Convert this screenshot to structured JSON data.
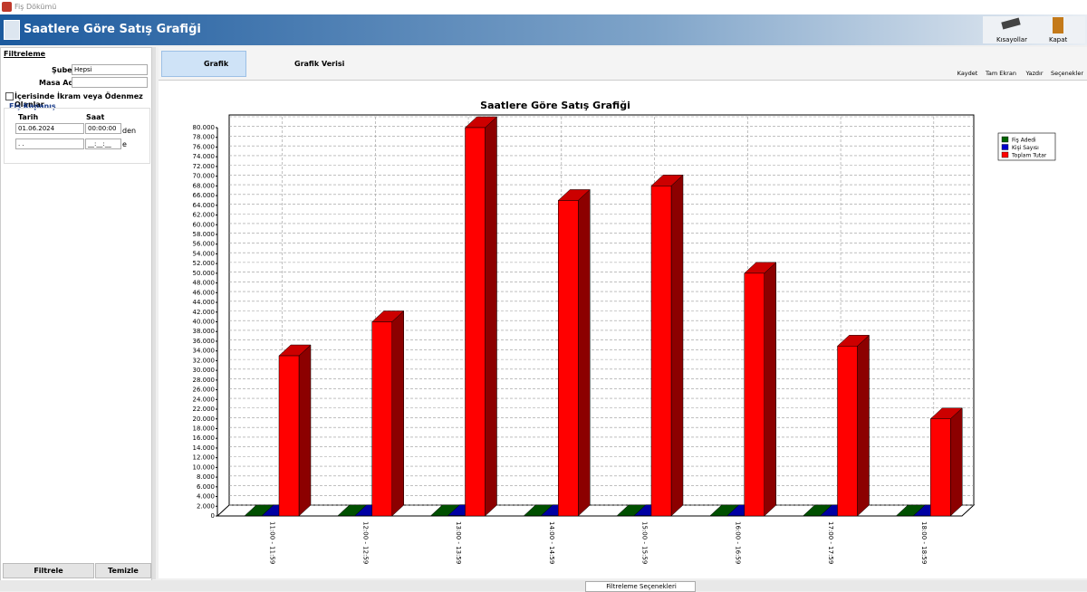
{
  "window": {
    "title": "Fiş Dökümü"
  },
  "header": {
    "title": "Saatlere Göre Satış Grafiği",
    "buttons": [
      "Kısayollar",
      "Kapat"
    ]
  },
  "filters": {
    "title": "Filtreleme",
    "sube_label": "Şube",
    "sube_value": "Hepsi",
    "masa_label": "Masa Adı",
    "checkbox": "İçerisinde İkram veya Ödenmez Olanlar",
    "group": "Fiş Kapanış",
    "tarih": "Tarih",
    "saat": "Saat",
    "date1": "01.06.2024",
    "time1": "00:00:00",
    "from": "den",
    "date2": " . .",
    "time2": "__:__:__",
    "to": "e",
    "filter_button": "Filtrele",
    "clear_button": "Temizle"
  },
  "tabs": [
    "Grafik",
    "Grafik Verisi"
  ],
  "toolbar": [
    "Kaydet",
    "Tam Ekran",
    "Yazdır",
    "Seçenekler"
  ],
  "footer": {
    "dropdown": "Filtreleme Seçenekleri"
  },
  "chart_data": {
    "type": "bar3d",
    "title": "Saatlere Göre Satış Grafiği",
    "categories": [
      "11:00 - 11:59",
      "12:00 - 12:59",
      "13:00 - 13:59",
      "14:00 - 14:59",
      "15:00 - 15:59",
      "16:00 - 16:59",
      "17:00 - 17:59",
      "18:00 - 18:59"
    ],
    "series": [
      {
        "name": "Fiş Adedi",
        "color": "#006400",
        "values": [
          15,
          18,
          35,
          28,
          30,
          22,
          16,
          10
        ]
      },
      {
        "name": "Kişi Sayısı",
        "color": "#0000cc",
        "values": [
          30,
          36,
          70,
          56,
          60,
          44,
          32,
          20
        ]
      },
      {
        "name": "Toplam Tutar",
        "color": "#ff0000",
        "values": [
          33000,
          40000,
          80000,
          65000,
          68000,
          50000,
          35000,
          20000
        ]
      }
    ],
    "ylim": [
      0,
      80000
    ],
    "yticks": [
      0,
      {
        "value": 2000,
        "label": "2.000"
      },
      {
        "value": 4000,
        "label": "4.000"
      },
      {
        "value": 6000,
        "label": "6.000"
      },
      {
        "value": 8000,
        "label": "8.000"
      },
      {
        "value": 10000,
        "label": "10.000"
      },
      {
        "value": 12000,
        "label": "12.000"
      },
      {
        "value": 14000,
        "label": "14.000"
      },
      {
        "value": 16000,
        "label": "16.000"
      },
      {
        "value": 18000,
        "label": "18.000"
      },
      {
        "value": 20000,
        "label": "20.000"
      },
      {
        "value": 22000,
        "label": "22.000"
      },
      {
        "value": 24000,
        "label": "24.000"
      },
      {
        "value": 26000,
        "label": "26.000"
      },
      {
        "value": 28000,
        "label": "28.000"
      },
      {
        "value": 30000,
        "label": "30.000"
      },
      {
        "value": 32000,
        "label": "32.000"
      },
      {
        "value": 34000,
        "label": "34.000"
      },
      {
        "value": 36000,
        "label": "36.000"
      },
      {
        "value": 38000,
        "label": "38.000"
      },
      {
        "value": 40000,
        "label": "40.000"
      },
      {
        "value": 42000,
        "label": "42.000"
      },
      {
        "value": 44000,
        "label": "44.000"
      },
      {
        "value": 46000,
        "label": "46.000"
      },
      {
        "value": 48000,
        "label": "48.000"
      },
      {
        "value": 50000,
        "label": "50.000"
      },
      {
        "value": 52000,
        "label": "52.000"
      },
      {
        "value": 54000,
        "label": "54.000"
      },
      {
        "value": 56000,
        "label": "56.000"
      },
      {
        "value": 58000,
        "label": "58.000"
      },
      {
        "value": 60000,
        "label": "60.000"
      },
      {
        "value": 62000,
        "label": "62.000"
      },
      {
        "value": 64000,
        "label": "64.000"
      },
      {
        "value": 66000,
        "label": "66.000"
      },
      {
        "value": 68000,
        "label": "68.000"
      },
      {
        "value": 70000,
        "label": "70.000"
      },
      {
        "value": 72000,
        "label": "72.000"
      },
      {
        "value": 74000,
        "label": "74.000"
      },
      {
        "value": 76000,
        "label": "76.000"
      },
      {
        "value": 78000,
        "label": "78.000"
      },
      {
        "value": 80000,
        "label": "80.000"
      }
    ],
    "grid": true,
    "legend": "top-right"
  }
}
